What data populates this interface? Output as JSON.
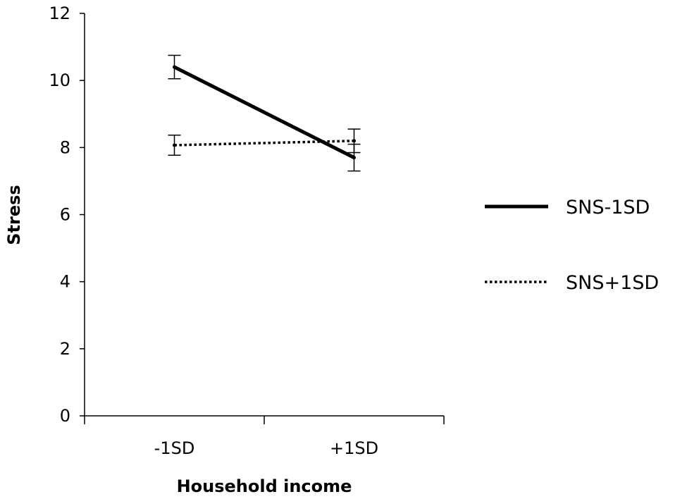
{
  "chart_data": {
    "type": "line",
    "xlabel": "Household income",
    "ylabel": "Stress",
    "categories": [
      "-1SD",
      "+1SD"
    ],
    "ylim": [
      0,
      12
    ],
    "yticks": [
      0,
      2,
      4,
      6,
      8,
      10,
      12
    ],
    "grid": false,
    "legend_position": "right",
    "series": [
      {
        "name": "SNS-1SD",
        "style": "solid",
        "color": "#000000",
        "values": [
          10.4,
          7.7
        ],
        "error": [
          0.35,
          0.4
        ]
      },
      {
        "name": "SNS+1SD",
        "style": "dotted",
        "color": "#000000",
        "values": [
          8.07,
          8.2
        ],
        "error": [
          0.3,
          0.35
        ]
      }
    ]
  }
}
